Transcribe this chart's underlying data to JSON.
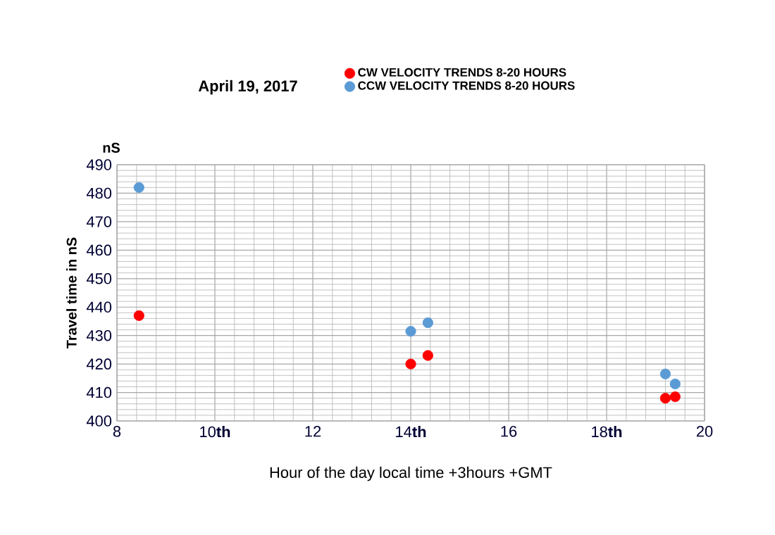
{
  "chart_data": {
    "type": "scatter",
    "title": "April 19, 2017",
    "xlabel": "Hour of the day   local  time     +3hours  +GMT",
    "ylabel": "Travel time in nS",
    "annotations": [
      "nS"
    ],
    "xlim": [
      8,
      20
    ],
    "ylim": [
      400,
      490
    ],
    "xticks": [
      8,
      {
        "value": 10,
        "label": "10**th**"
      },
      12,
      {
        "value": 14,
        "label": "14**th**"
      },
      16,
      {
        "value": 18,
        "label": "18**th**"
      },
      20
    ],
    "yticks": [
      400,
      410,
      420,
      430,
      440,
      450,
      460,
      470,
      480,
      490
    ],
    "grid": true,
    "legend": "top",
    "marker": "circle",
    "series": [
      {
        "name": "CW VELOCITY TRENDS 8-20 HOURS",
        "color": "#ff0000",
        "x": [
          8.45,
          14.0,
          14.35,
          19.2,
          19.4
        ],
        "values": [
          437,
          420,
          423,
          408,
          408.5
        ]
      },
      {
        "name": "CCW VELOCITY TRENDS 8-20 HOURS",
        "color": "#5b9bd5",
        "x": [
          8.45,
          14.0,
          14.35,
          19.2,
          19.4
        ],
        "values": [
          482,
          431.5,
          434.5,
          416.5,
          413
        ]
      }
    ]
  }
}
